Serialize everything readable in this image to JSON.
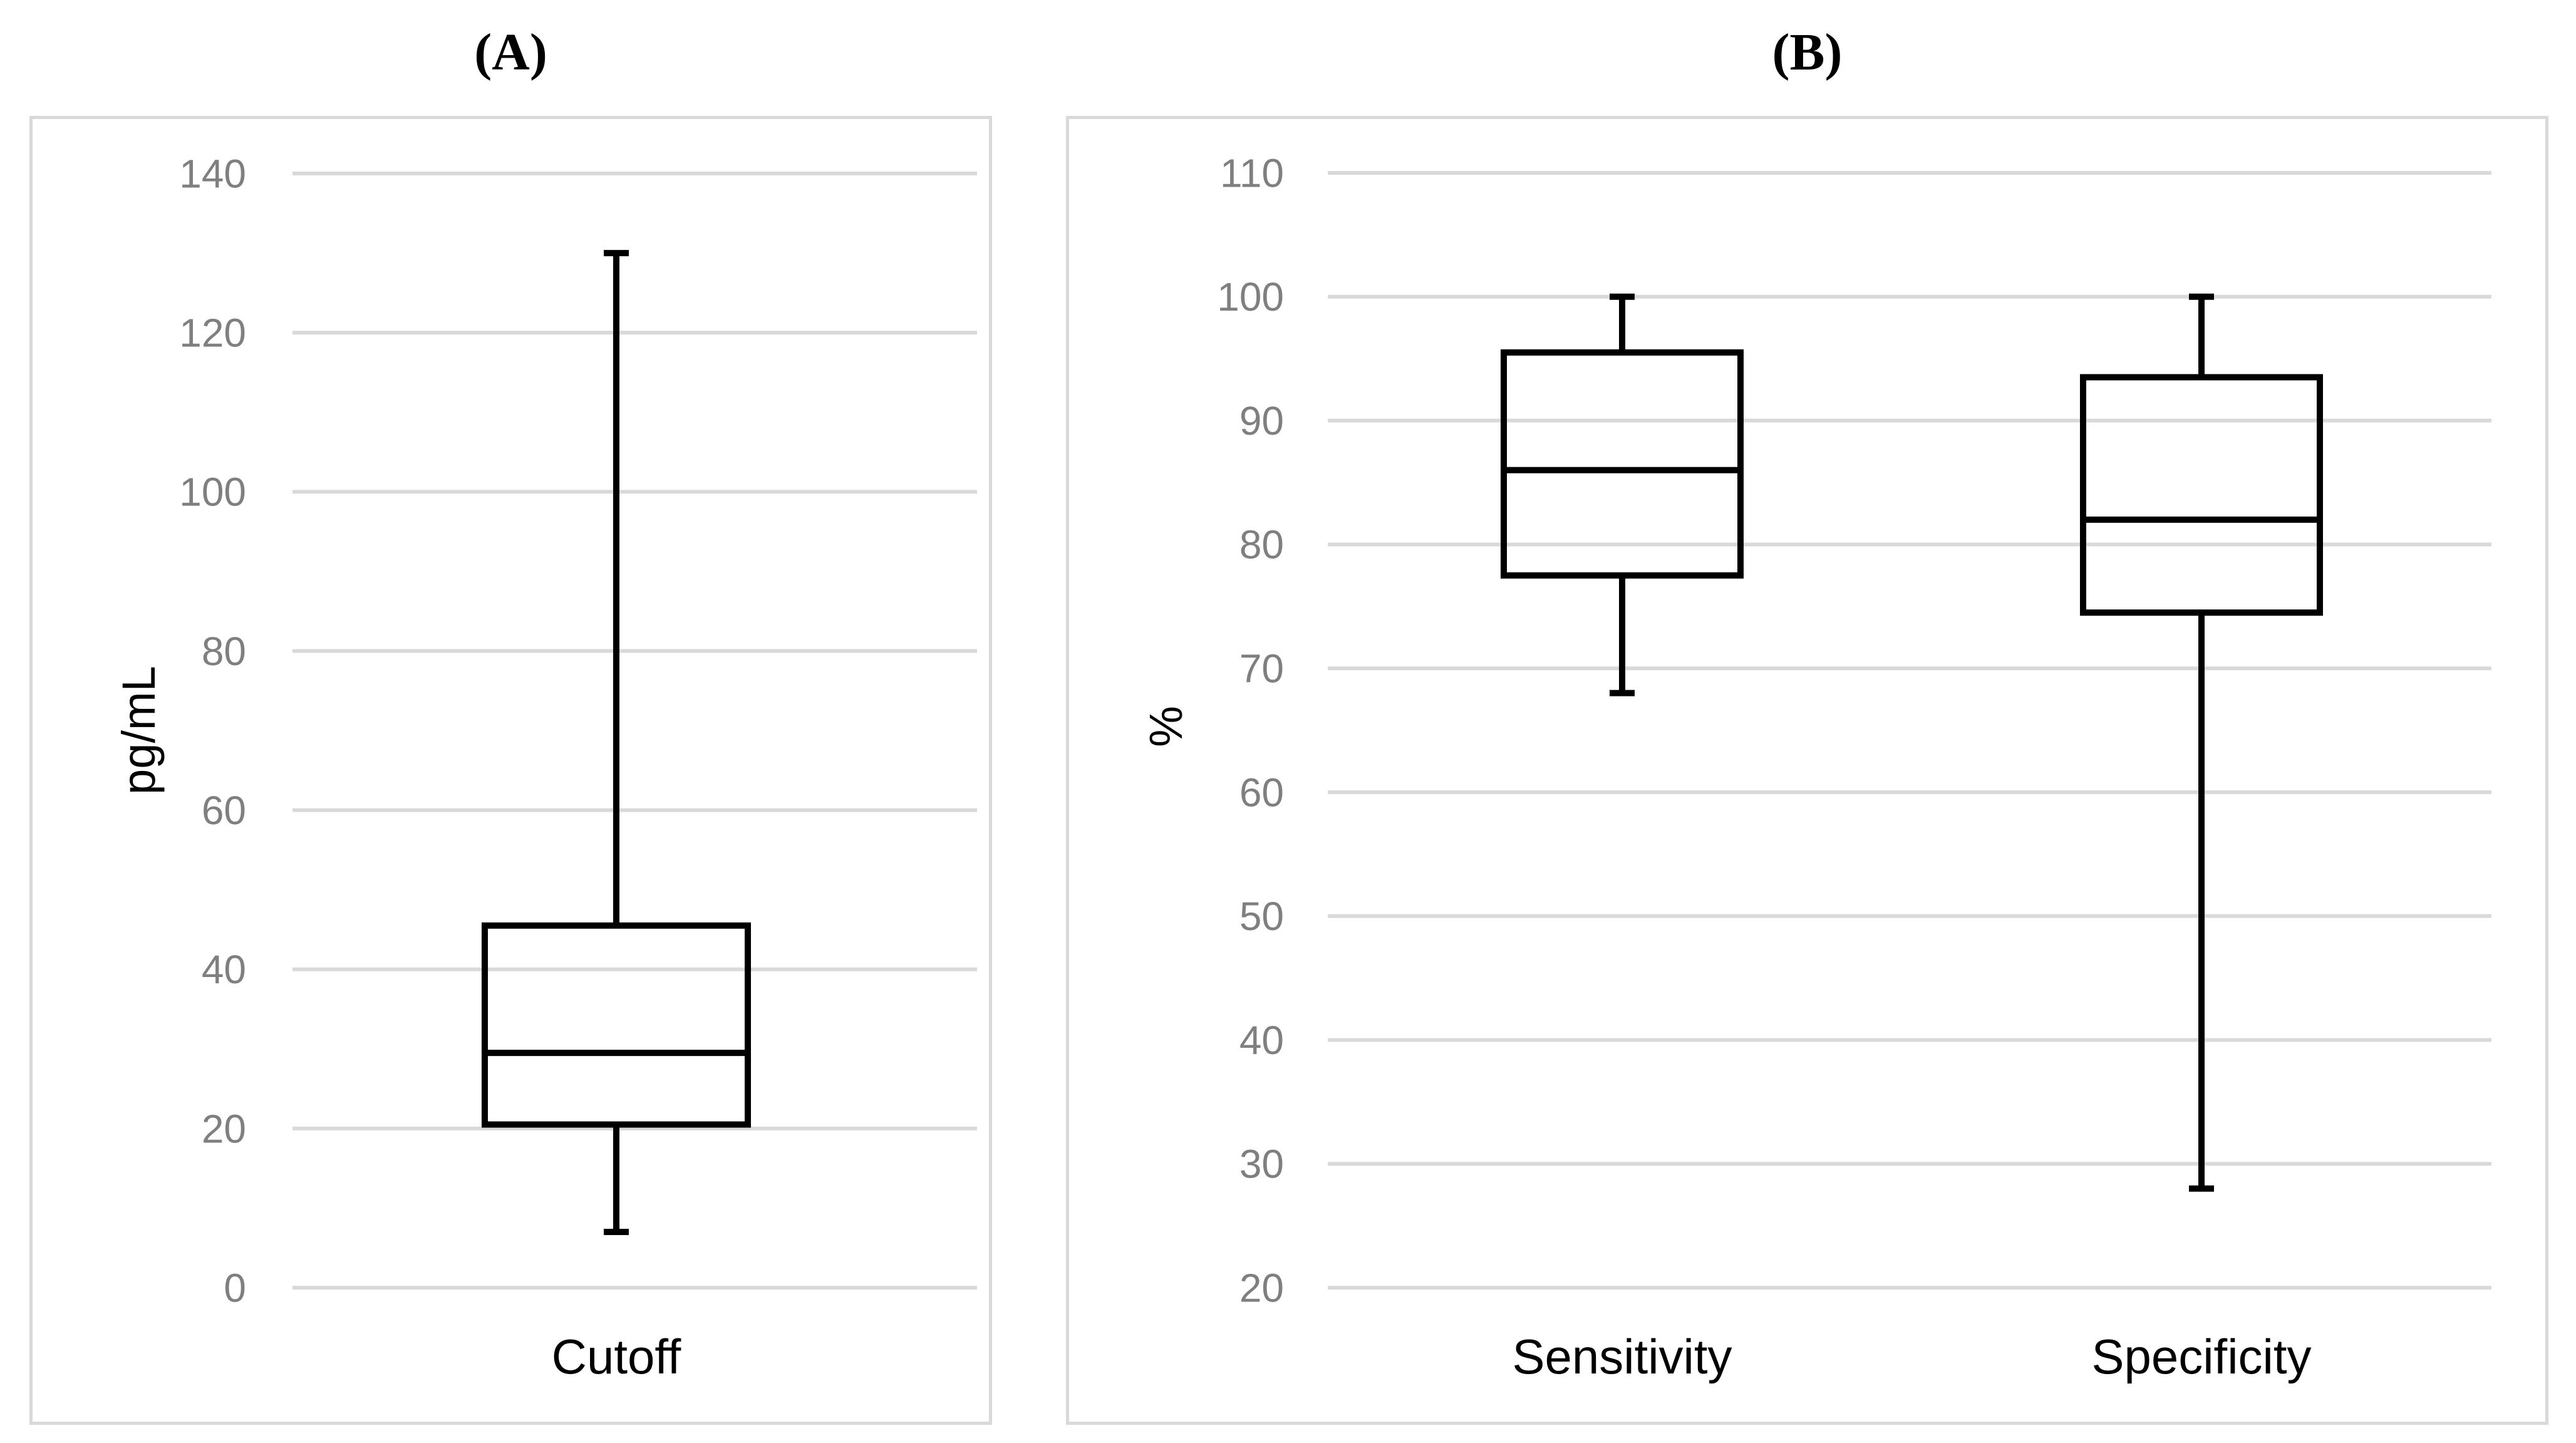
{
  "page": {
    "background": "#ffffff"
  },
  "chart_data": {
    "type": "boxplot",
    "layout": "two panels side by side, light gray panel borders, horizontal gridlines",
    "colors": {
      "gridline": "#d9d9d9",
      "panel_border": "#d9d9d9",
      "tick_label": "#7f7f7f",
      "box_stroke": "#000000",
      "text": "#000000",
      "background": "#ffffff"
    },
    "panels": [
      {
        "title": "(A)",
        "ylabel": "pg/mL",
        "y_axis": {
          "min": 0,
          "max": 140,
          "step": 20
        },
        "grid": true,
        "legend": "none",
        "categories": [
          "Cutoff"
        ],
        "series": [
          {
            "category": "Cutoff",
            "whisker_min": 7,
            "q1": 20.5,
            "median": 29.5,
            "q3": 45.5,
            "whisker_max": 130
          }
        ]
      },
      {
        "title": "(B)",
        "ylabel": "%",
        "y_axis": {
          "min": 20,
          "max": 110,
          "step": 10
        },
        "grid": true,
        "legend": "none",
        "categories": [
          "Sensitivity",
          "Specificity"
        ],
        "series": [
          {
            "category": "Sensitivity",
            "whisker_min": 68,
            "q1": 77.5,
            "median": 86,
            "q3": 95.5,
            "whisker_max": 100
          },
          {
            "category": "Specificity",
            "whisker_min": 28,
            "q1": 74.5,
            "median": 82,
            "q3": 93.5,
            "whisker_max": 100
          }
        ]
      }
    ]
  }
}
